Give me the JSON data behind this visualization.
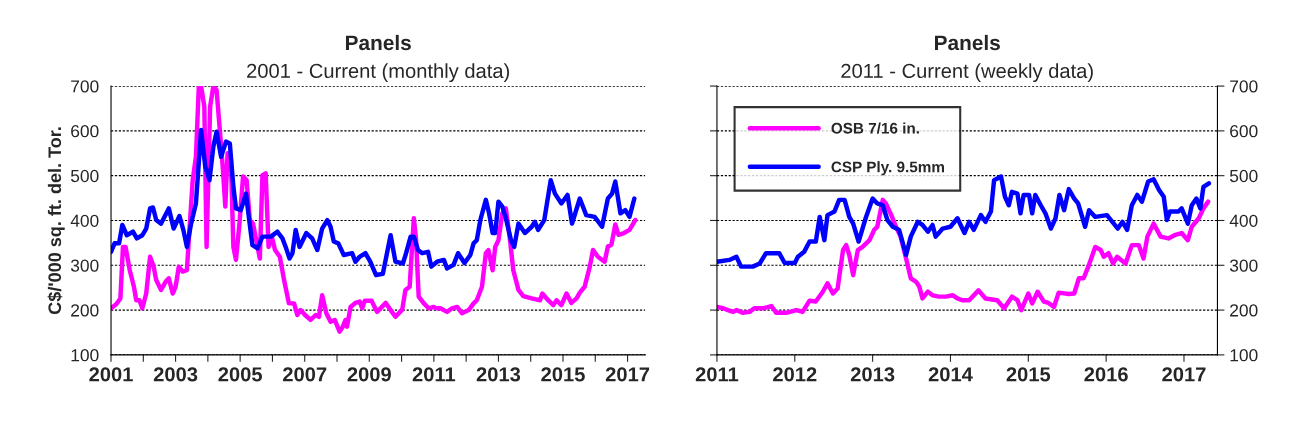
{
  "chart_data": [
    {
      "type": "line",
      "title": "Panels",
      "subtitle": "2001 - Current (monthly data)",
      "ylabel": "C$/'000 sq. ft. del. Tor.",
      "xlim": [
        2001,
        2017.55
      ],
      "xticks": [
        2001,
        {
          "value": 2002,
          "label": null
        },
        2003,
        {
          "value": 2004,
          "label": null
        },
        2005,
        {
          "value": 2006,
          "label": null
        },
        2007,
        {
          "value": 2008,
          "label": null
        },
        2009,
        {
          "value": 2010,
          "label": null
        },
        2011,
        {
          "value": 2012,
          "label": null
        },
        2013,
        {
          "value": 2014,
          "label": null
        },
        2015,
        {
          "value": 2016,
          "label": null
        },
        2017
      ],
      "ylim": [
        100,
        700
      ],
      "yticks": [
        100,
        200,
        300,
        400,
        500,
        600,
        700
      ],
      "grid": "y",
      "legend": false,
      "line_style": "solid",
      "marker": "none",
      "series": [
        {
          "color": "#ff00ff",
          "x": [
            2001.0,
            2001.16,
            2001.29,
            2001.37,
            2001.45,
            2001.58,
            2001.71,
            2001.78,
            2001.88,
            2001.97,
            2002.09,
            2002.21,
            2002.32,
            2002.4,
            2002.55,
            2002.69,
            2002.79,
            2002.91,
            2003.0,
            2003.1,
            2003.22,
            2003.35,
            2003.43,
            2003.53,
            2003.63,
            2003.72,
            2003.79,
            2003.89,
            2003.96,
            2004.07,
            2004.17,
            2004.27,
            2004.37,
            2004.46,
            2004.54,
            2004.61,
            2004.71,
            2004.79,
            2004.87,
            2004.97,
            2005.09,
            2005.2,
            2005.3,
            2005.4,
            2005.54,
            2005.61,
            2005.69,
            2005.79,
            2005.88,
            2005.98,
            2006.08,
            2006.23,
            2006.36,
            2006.51,
            2006.67,
            2006.77,
            2006.87,
            2007.01,
            2007.18,
            2007.34,
            2007.44,
            2007.54,
            2007.67,
            2007.8,
            2007.93,
            2008.08,
            2008.18,
            2008.26,
            2008.31,
            2008.42,
            2008.57,
            2008.7,
            2008.78,
            2008.86,
            2009.07,
            2009.24,
            2009.51,
            2009.66,
            2009.81,
            2010.02,
            2010.12,
            2010.25,
            2010.38,
            2010.45,
            2010.53,
            2010.69,
            2010.84,
            2011.0,
            2011.07,
            2011.2,
            2011.41,
            2011.56,
            2011.72,
            2011.87,
            2012.08,
            2012.23,
            2012.33,
            2012.49,
            2012.61,
            2012.69,
            2012.82,
            2012.9,
            2013.0,
            2013.12,
            2013.23,
            2013.36,
            2013.46,
            2013.62,
            2013.77,
            2014.03,
            2014.29,
            2014.36,
            2014.54,
            2014.7,
            2014.8,
            2014.95,
            2015.11,
            2015.26,
            2015.42,
            2015.52,
            2015.67,
            2015.83,
            2015.93,
            2016.08,
            2016.29,
            2016.39,
            2016.5,
            2016.62,
            2016.72,
            2016.89,
            2017.06,
            2017.24
          ],
          "values": [
            204,
            213,
            226,
            341,
            341,
            289,
            252,
            222,
            222,
            204,
            237,
            319,
            297,
            267,
            245,
            263,
            271,
            237,
            252,
            297,
            286,
            289,
            379,
            490,
            542,
            700,
            700,
            654,
            341,
            654,
            700,
            691,
            602,
            520,
            431,
            550,
            542,
            341,
            312,
            386,
            498,
            490,
            401,
            393,
            341,
            315,
            501,
            505,
            341,
            364,
            334,
            319,
            267,
            215,
            215,
            189,
            200,
            189,
            178,
            189,
            185,
            233,
            193,
            174,
            178,
            152,
            163,
            178,
            163,
            207,
            216,
            219,
            204,
            221,
            221,
            196,
            216,
            200,
            185,
            201,
            245,
            252,
            405,
            356,
            230,
            215,
            204,
            207,
            204,
            204,
            196,
            204,
            207,
            193,
            200,
            215,
            222,
            252,
            327,
            334,
            289,
            341,
            356,
            416,
            427,
            356,
            289,
            245,
            231,
            226,
            222,
            237,
            222,
            211,
            222,
            211,
            237,
            216,
            226,
            239,
            252,
            297,
            334,
            319,
            308,
            342,
            346,
            391,
            368,
            372,
            379,
            401
          ]
        },
        {
          "color": "#0000ff",
          "x": [
            2001.0,
            2001.11,
            2001.25,
            2001.35,
            2001.49,
            2001.68,
            2001.8,
            2001.97,
            2002.09,
            2002.21,
            2002.3,
            2002.4,
            2002.55,
            2002.79,
            2002.94,
            2003.12,
            2003.24,
            2003.35,
            2003.48,
            2003.63,
            2003.79,
            2003.92,
            2004.05,
            2004.17,
            2004.27,
            2004.41,
            2004.56,
            2004.68,
            2004.79,
            2004.87,
            2005.02,
            2005.18,
            2005.28,
            2005.38,
            2005.54,
            2005.69,
            2005.95,
            2006.15,
            2006.31,
            2006.41,
            2006.53,
            2006.62,
            2006.72,
            2006.84,
            2007.05,
            2007.23,
            2007.39,
            2007.54,
            2007.7,
            2007.8,
            2007.9,
            2008.04,
            2008.21,
            2008.47,
            2008.57,
            2008.7,
            2008.88,
            2009.03,
            2009.21,
            2009.42,
            2009.66,
            2009.81,
            2010.04,
            2010.14,
            2010.28,
            2010.38,
            2010.51,
            2010.64,
            2010.82,
            2010.92,
            2011.1,
            2011.31,
            2011.41,
            2011.61,
            2011.75,
            2011.95,
            2012.13,
            2012.23,
            2012.33,
            2012.44,
            2012.61,
            2012.71,
            2012.82,
            2012.9,
            2013.0,
            2013.12,
            2013.23,
            2013.39,
            2013.49,
            2013.62,
            2013.82,
            2014.03,
            2014.13,
            2014.23,
            2014.42,
            2014.62,
            2014.75,
            2014.95,
            2015.14,
            2015.28,
            2015.52,
            2015.72,
            2015.98,
            2016.21,
            2016.39,
            2016.52,
            2016.62,
            2016.78,
            2016.93,
            2017.06,
            2017.21
          ],
          "values": [
            330,
            349,
            349,
            390,
            367,
            375,
            360,
            367,
            382,
            427,
            429,
            401,
            393,
            427,
            382,
            410,
            379,
            341,
            393,
            438,
            602,
            520,
            490,
            565,
            598,
            542,
            576,
            572,
            475,
            427,
            423,
            460,
            401,
            345,
            338,
            364,
            364,
            375,
            360,
            341,
            315,
            327,
            379,
            341,
            372,
            360,
            334,
            382,
            401,
            386,
            353,
            349,
            323,
            327,
            308,
            319,
            327,
            308,
            278,
            281,
            367,
            308,
            304,
            327,
            364,
            364,
            334,
            327,
            330,
            297,
            308,
            312,
            293,
            301,
            327,
            305,
            323,
            349,
            356,
            401,
            446,
            416,
            372,
            372,
            442,
            431,
            405,
            356,
            341,
            393,
            372,
            386,
            397,
            379,
            401,
            490,
            460,
            438,
            457,
            393,
            449,
            412,
            408,
            386,
            449,
            460,
            487,
            416,
            423,
            408,
            449
          ]
        }
      ]
    },
    {
      "type": "line",
      "title": "Panels",
      "subtitle": "2011 - Current (weekly data)",
      "xlim": [
        2011,
        2017.43
      ],
      "xticks": [
        2011,
        2012,
        2013,
        2014,
        2015,
        2016,
        2017
      ],
      "y2lim": [
        100,
        700
      ],
      "y2ticks": [
        100,
        200,
        300,
        400,
        500,
        600,
        700
      ],
      "grid": "y",
      "legend": "top left",
      "line_style": "solid",
      "marker": "none",
      "series": [
        {
          "name": "OSB 7/16 in.",
          "color": "#ff00ff",
          "axis": "y2",
          "x": [
            2011.0,
            2011.08,
            2011.14,
            2011.21,
            2011.25,
            2011.33,
            2011.42,
            2011.48,
            2011.59,
            2011.7,
            2011.76,
            2011.89,
            2012.02,
            2012.1,
            2012.19,
            2012.27,
            2012.36,
            2012.42,
            2012.49,
            2012.55,
            2012.62,
            2012.66,
            2012.7,
            2012.75,
            2012.81,
            2012.87,
            2012.96,
            2013.02,
            2013.06,
            2013.13,
            2013.17,
            2013.24,
            2013.3,
            2013.36,
            2013.43,
            2013.49,
            2013.56,
            2013.6,
            2013.64,
            2013.71,
            2013.77,
            2013.85,
            2013.94,
            2014.03,
            2014.09,
            2014.15,
            2014.24,
            2014.36,
            2014.45,
            2014.6,
            2014.69,
            2014.79,
            2014.86,
            2014.91,
            2015.0,
            2015.05,
            2015.12,
            2015.2,
            2015.26,
            2015.33,
            2015.39,
            2015.52,
            2015.59,
            2015.65,
            2015.71,
            2015.78,
            2015.86,
            2015.93,
            2015.97,
            2016.03,
            2016.09,
            2016.14,
            2016.25,
            2016.33,
            2016.42,
            2016.48,
            2016.53,
            2016.61,
            2016.7,
            2016.8,
            2016.89,
            2016.97,
            2017.05,
            2017.1,
            2017.19,
            2017.25,
            2017.31
          ],
          "values": [
            207,
            204,
            200,
            196,
            200,
            194,
            196,
            204,
            204,
            209,
            194,
            194,
            200,
            196,
            221,
            219,
            241,
            260,
            237,
            248,
            334,
            345,
            323,
            278,
            334,
            341,
            356,
            379,
            386,
            446,
            438,
            412,
            386,
            364,
            315,
            271,
            263,
            252,
            226,
            241,
            233,
            230,
            230,
            233,
            226,
            222,
            222,
            244,
            226,
            222,
            204,
            230,
            222,
            200,
            237,
            215,
            241,
            219,
            216,
            207,
            239,
            236,
            237,
            271,
            271,
            301,
            341,
            334,
            319,
            327,
            304,
            319,
            304,
            345,
            345,
            315,
            364,
            393,
            364,
            360,
            368,
            372,
            356,
            386,
            405,
            427,
            442
          ]
        },
        {
          "name": "CSP Ply. 9.5mm",
          "color": "#0000ff",
          "axis": "y2",
          "x": [
            2011.0,
            2011.16,
            2011.25,
            2011.31,
            2011.46,
            2011.55,
            2011.63,
            2011.8,
            2011.87,
            2012.0,
            2012.04,
            2012.12,
            2012.19,
            2012.27,
            2012.32,
            2012.38,
            2012.42,
            2012.51,
            2012.57,
            2012.64,
            2012.7,
            2012.75,
            2012.82,
            2012.91,
            2013.0,
            2013.06,
            2013.13,
            2013.19,
            2013.26,
            2013.34,
            2013.43,
            2013.49,
            2013.58,
            2013.64,
            2013.71,
            2013.77,
            2013.81,
            2013.9,
            2014.0,
            2014.09,
            2014.18,
            2014.24,
            2014.3,
            2014.39,
            2014.45,
            2014.52,
            2014.56,
            2014.65,
            2014.7,
            2014.75,
            2014.79,
            2014.86,
            2014.9,
            2014.94,
            2015.01,
            2015.05,
            2015.09,
            2015.16,
            2015.22,
            2015.29,
            2015.35,
            2015.4,
            2015.46,
            2015.52,
            2015.59,
            2015.64,
            2015.73,
            2015.78,
            2015.86,
            2016.01,
            2016.08,
            2016.15,
            2016.21,
            2016.27,
            2016.33,
            2016.4,
            2016.46,
            2016.54,
            2016.61,
            2016.68,
            2016.74,
            2016.78,
            2016.82,
            2016.93,
            2016.97,
            2017.05,
            2017.1,
            2017.16,
            2017.21,
            2017.25,
            2017.32
          ],
          "values": [
            308,
            312,
            319,
            297,
            297,
            304,
            327,
            327,
            305,
            305,
            319,
            330,
            353,
            353,
            408,
            356,
            412,
            420,
            446,
            446,
            408,
            393,
            353,
            405,
            449,
            438,
            434,
            401,
            386,
            379,
            323,
            364,
            397,
            390,
            375,
            390,
            364,
            382,
            386,
            405,
            372,
            397,
            379,
            412,
            397,
            420,
            490,
            498,
            453,
            434,
            464,
            460,
            416,
            457,
            457,
            416,
            457,
            434,
            416,
            382,
            405,
            457,
            423,
            470,
            449,
            438,
            386,
            423,
            408,
            412,
            397,
            382,
            397,
            379,
            434,
            457,
            442,
            487,
            492,
            468,
            453,
            401,
            420,
            420,
            427,
            393,
            434,
            449,
            427,
            475,
            483
          ]
        }
      ]
    }
  ]
}
